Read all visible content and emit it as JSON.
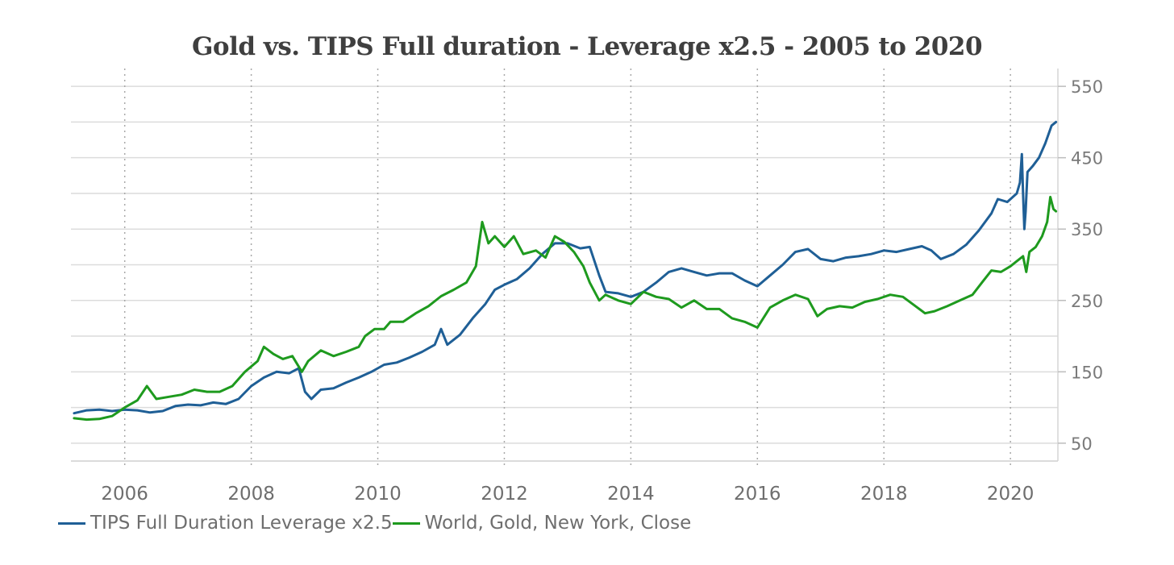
{
  "chart_data": {
    "type": "line",
    "title": "Gold vs. TIPS Full duration - Leverage x2.5 - 2005 to 2020",
    "xlabel": "",
    "ylabel": "",
    "xlim": [
      2005.15,
      2020.75
    ],
    "ylim": [
      25,
      575
    ],
    "x_ticks": [
      2006,
      2008,
      2010,
      2012,
      2014,
      2016,
      2018,
      2020
    ],
    "x_tick_labels": [
      "2006",
      "2008",
      "2010",
      "2012",
      "2014",
      "2016",
      "2018",
      "2020"
    ],
    "y_ticks": [
      50,
      150,
      250,
      350,
      450,
      550
    ],
    "y_tick_labels": [
      "50",
      "150",
      "250",
      "350",
      "450",
      "550"
    ],
    "y_axis_position": "right",
    "grid": "horizontal solid every 50, vertical dotted at labeled years",
    "legend_position": "bottom-left",
    "series": [
      {
        "name": "TIPS Full Duration Leverage x2.5",
        "color": "#1f5f96",
        "points": [
          [
            2005.2,
            92
          ],
          [
            2005.4,
            96
          ],
          [
            2005.6,
            97
          ],
          [
            2005.8,
            95
          ],
          [
            2006.0,
            97
          ],
          [
            2006.2,
            96
          ],
          [
            2006.4,
            93
          ],
          [
            2006.6,
            95
          ],
          [
            2006.8,
            102
          ],
          [
            2007.0,
            104
          ],
          [
            2007.2,
            103
          ],
          [
            2007.4,
            107
          ],
          [
            2007.6,
            105
          ],
          [
            2007.8,
            112
          ],
          [
            2008.0,
            130
          ],
          [
            2008.2,
            142
          ],
          [
            2008.4,
            150
          ],
          [
            2008.6,
            148
          ],
          [
            2008.75,
            155
          ],
          [
            2008.85,
            122
          ],
          [
            2008.95,
            112
          ],
          [
            2009.1,
            125
          ],
          [
            2009.3,
            127
          ],
          [
            2009.5,
            135
          ],
          [
            2009.7,
            142
          ],
          [
            2009.9,
            150
          ],
          [
            2010.1,
            160
          ],
          [
            2010.3,
            163
          ],
          [
            2010.5,
            170
          ],
          [
            2010.7,
            178
          ],
          [
            2010.9,
            188
          ],
          [
            2011.0,
            210
          ],
          [
            2011.1,
            188
          ],
          [
            2011.3,
            202
          ],
          [
            2011.5,
            225
          ],
          [
            2011.7,
            245
          ],
          [
            2011.85,
            265
          ],
          [
            2012.0,
            272
          ],
          [
            2012.2,
            280
          ],
          [
            2012.4,
            295
          ],
          [
            2012.6,
            315
          ],
          [
            2012.8,
            330
          ],
          [
            2013.0,
            330
          ],
          [
            2013.2,
            323
          ],
          [
            2013.35,
            325
          ],
          [
            2013.5,
            285
          ],
          [
            2013.6,
            262
          ],
          [
            2013.8,
            260
          ],
          [
            2014.0,
            255
          ],
          [
            2014.2,
            262
          ],
          [
            2014.4,
            275
          ],
          [
            2014.6,
            290
          ],
          [
            2014.8,
            295
          ],
          [
            2015.0,
            290
          ],
          [
            2015.2,
            285
          ],
          [
            2015.4,
            288
          ],
          [
            2015.6,
            288
          ],
          [
            2015.8,
            278
          ],
          [
            2016.0,
            270
          ],
          [
            2016.2,
            285
          ],
          [
            2016.4,
            300
          ],
          [
            2016.6,
            318
          ],
          [
            2016.8,
            322
          ],
          [
            2017.0,
            308
          ],
          [
            2017.2,
            305
          ],
          [
            2017.4,
            310
          ],
          [
            2017.6,
            312
          ],
          [
            2017.8,
            315
          ],
          [
            2018.0,
            320
          ],
          [
            2018.2,
            318
          ],
          [
            2018.4,
            322
          ],
          [
            2018.6,
            326
          ],
          [
            2018.75,
            320
          ],
          [
            2018.9,
            308
          ],
          [
            2019.1,
            315
          ],
          [
            2019.3,
            328
          ],
          [
            2019.5,
            348
          ],
          [
            2019.7,
            372
          ],
          [
            2019.8,
            392
          ],
          [
            2019.95,
            388
          ],
          [
            2020.1,
            400
          ],
          [
            2020.15,
            415
          ],
          [
            2020.18,
            455
          ],
          [
            2020.2,
            400
          ],
          [
            2020.22,
            350
          ],
          [
            2020.24,
            375
          ],
          [
            2020.27,
            430
          ],
          [
            2020.35,
            438
          ],
          [
            2020.45,
            450
          ],
          [
            2020.55,
            470
          ],
          [
            2020.65,
            495
          ],
          [
            2020.72,
            500
          ]
        ]
      },
      {
        "name": "World, Gold, New York, Close",
        "color": "#1e9a1e",
        "points": [
          [
            2005.2,
            85
          ],
          [
            2005.4,
            83
          ],
          [
            2005.6,
            84
          ],
          [
            2005.8,
            88
          ],
          [
            2006.0,
            100
          ],
          [
            2006.2,
            110
          ],
          [
            2006.35,
            130
          ],
          [
            2006.5,
            112
          ],
          [
            2006.7,
            115
          ],
          [
            2006.9,
            118
          ],
          [
            2007.1,
            125
          ],
          [
            2007.3,
            122
          ],
          [
            2007.5,
            122
          ],
          [
            2007.7,
            130
          ],
          [
            2007.9,
            150
          ],
          [
            2008.1,
            165
          ],
          [
            2008.2,
            185
          ],
          [
            2008.35,
            175
          ],
          [
            2008.5,
            168
          ],
          [
            2008.65,
            172
          ],
          [
            2008.8,
            150
          ],
          [
            2008.9,
            165
          ],
          [
            2009.1,
            180
          ],
          [
            2009.3,
            172
          ],
          [
            2009.5,
            178
          ],
          [
            2009.7,
            185
          ],
          [
            2009.8,
            200
          ],
          [
            2009.95,
            210
          ],
          [
            2010.1,
            210
          ],
          [
            2010.2,
            220
          ],
          [
            2010.4,
            220
          ],
          [
            2010.6,
            232
          ],
          [
            2010.8,
            242
          ],
          [
            2011.0,
            256
          ],
          [
            2011.2,
            265
          ],
          [
            2011.4,
            275
          ],
          [
            2011.55,
            298
          ],
          [
            2011.65,
            360
          ],
          [
            2011.75,
            330
          ],
          [
            2011.85,
            340
          ],
          [
            2012.0,
            325
          ],
          [
            2012.15,
            340
          ],
          [
            2012.3,
            315
          ],
          [
            2012.5,
            320
          ],
          [
            2012.65,
            310
          ],
          [
            2012.8,
            340
          ],
          [
            2012.95,
            332
          ],
          [
            2013.1,
            318
          ],
          [
            2013.25,
            298
          ],
          [
            2013.35,
            275
          ],
          [
            2013.5,
            250
          ],
          [
            2013.6,
            258
          ],
          [
            2013.8,
            250
          ],
          [
            2014.0,
            245
          ],
          [
            2014.2,
            262
          ],
          [
            2014.4,
            255
          ],
          [
            2014.6,
            252
          ],
          [
            2014.8,
            240
          ],
          [
            2015.0,
            250
          ],
          [
            2015.2,
            238
          ],
          [
            2015.4,
            238
          ],
          [
            2015.6,
            225
          ],
          [
            2015.8,
            220
          ],
          [
            2016.0,
            212
          ],
          [
            2016.2,
            240
          ],
          [
            2016.4,
            250
          ],
          [
            2016.6,
            258
          ],
          [
            2016.8,
            252
          ],
          [
            2016.95,
            228
          ],
          [
            2017.1,
            238
          ],
          [
            2017.3,
            242
          ],
          [
            2017.5,
            240
          ],
          [
            2017.7,
            248
          ],
          [
            2017.9,
            252
          ],
          [
            2018.1,
            258
          ],
          [
            2018.3,
            255
          ],
          [
            2018.5,
            242
          ],
          [
            2018.65,
            232
          ],
          [
            2018.8,
            235
          ],
          [
            2019.0,
            242
          ],
          [
            2019.2,
            250
          ],
          [
            2019.4,
            258
          ],
          [
            2019.55,
            275
          ],
          [
            2019.7,
            292
          ],
          [
            2019.85,
            290
          ],
          [
            2020.0,
            298
          ],
          [
            2020.1,
            305
          ],
          [
            2020.2,
            312
          ],
          [
            2020.25,
            290
          ],
          [
            2020.3,
            318
          ],
          [
            2020.4,
            325
          ],
          [
            2020.5,
            340
          ],
          [
            2020.58,
            360
          ],
          [
            2020.63,
            395
          ],
          [
            2020.68,
            378
          ],
          [
            2020.72,
            375
          ]
        ]
      }
    ]
  }
}
